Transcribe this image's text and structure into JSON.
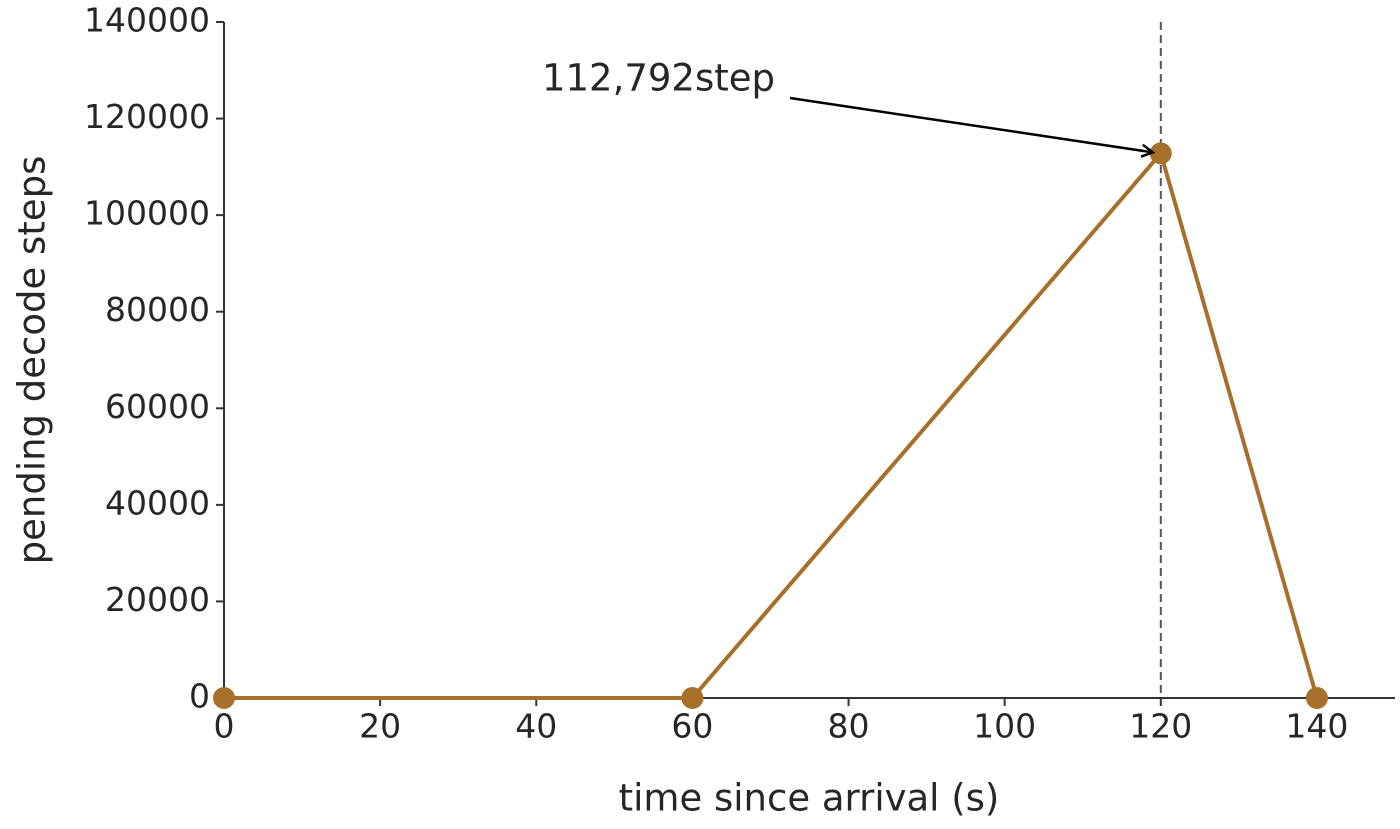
{
  "chart_data": {
    "type": "line",
    "x": [
      0,
      60,
      120,
      140
    ],
    "series": [
      {
        "name": "pending decode steps",
        "color": "#a6702b",
        "values": [
          0,
          0,
          112792,
          0
        ]
      }
    ],
    "xlabel": "time since arrival (s)",
    "ylabel": "pending decode steps",
    "xlim": [
      0,
      150
    ],
    "xticks": [
      0,
      20,
      40,
      60,
      80,
      100,
      120,
      140
    ],
    "ylim": [
      0,
      140000
    ],
    "yticks": [
      0,
      20000,
      40000,
      60000,
      80000,
      100000,
      120000,
      140000
    ],
    "vline": 120,
    "annotation": {
      "text": "112,792step",
      "x": 120,
      "y": 112792
    }
  }
}
